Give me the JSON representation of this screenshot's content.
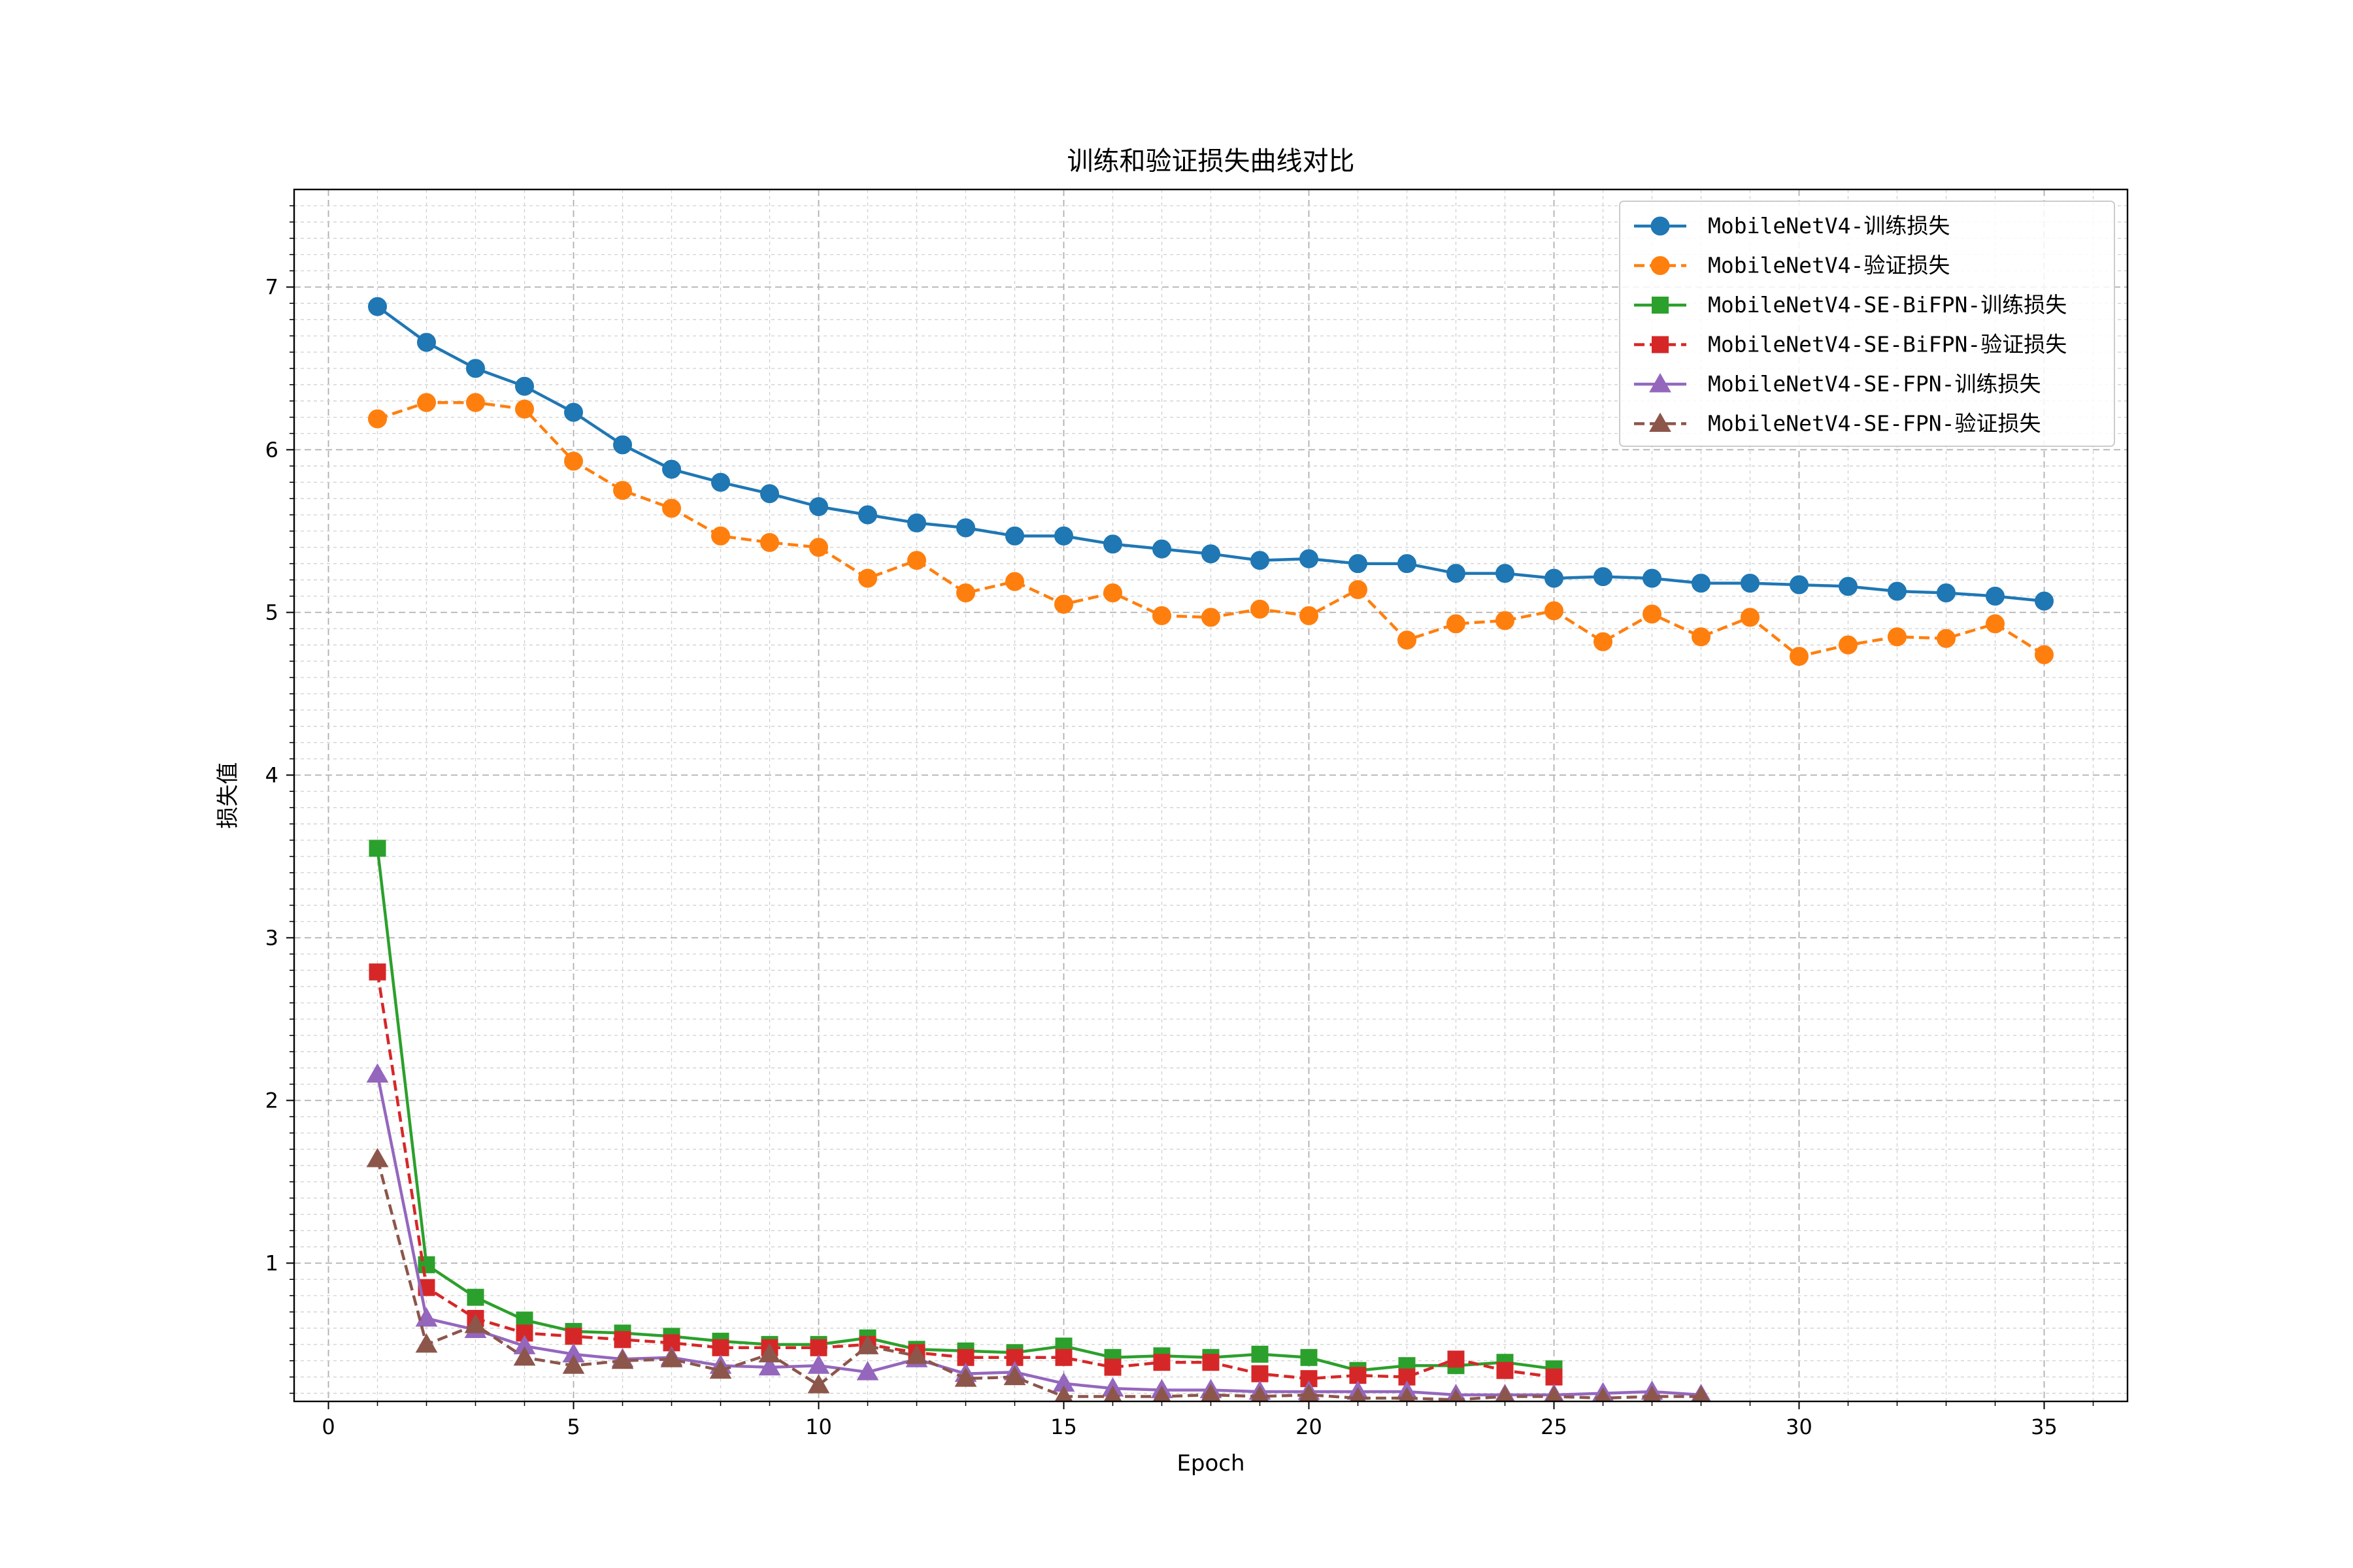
{
  "chart_data": {
    "type": "line",
    "title": "训练和验证损失曲线对比",
    "xlabel": "Epoch",
    "ylabel": "损失值",
    "xlim": [
      -0.7,
      36.7
    ],
    "ylim": [
      0.15,
      7.6
    ],
    "xticks": [
      0,
      5,
      10,
      15,
      20,
      25,
      30,
      35
    ],
    "yticks": [
      1,
      2,
      3,
      4,
      5,
      6,
      7
    ],
    "grid": true,
    "legend_position": "top-right",
    "series": [
      {
        "name": "MobileNetV4-训练损失",
        "color": "#1f77b4",
        "line_style": "solid",
        "marker": "circle",
        "x": [
          1,
          2,
          3,
          4,
          5,
          6,
          7,
          8,
          9,
          10,
          11,
          12,
          13,
          14,
          15,
          16,
          17,
          18,
          19,
          20,
          21,
          22,
          23,
          24,
          25,
          26,
          27,
          28,
          29,
          30,
          31,
          32,
          33,
          34,
          35
        ],
        "values": [
          6.88,
          6.66,
          6.5,
          6.39,
          6.23,
          6.03,
          5.88,
          5.8,
          5.73,
          5.65,
          5.6,
          5.55,
          5.52,
          5.47,
          5.47,
          5.42,
          5.39,
          5.36,
          5.32,
          5.33,
          5.3,
          5.3,
          5.24,
          5.24,
          5.21,
          5.22,
          5.21,
          5.18,
          5.18,
          5.17,
          5.16,
          5.13,
          5.12,
          5.1,
          5.07
        ]
      },
      {
        "name": "MobileNetV4-验证损失",
        "color": "#ff7f0e",
        "line_style": "dashed",
        "marker": "circle",
        "x": [
          1,
          2,
          3,
          4,
          5,
          6,
          7,
          8,
          9,
          10,
          11,
          12,
          13,
          14,
          15,
          16,
          17,
          18,
          19,
          20,
          21,
          22,
          23,
          24,
          25,
          26,
          27,
          28,
          29,
          30,
          31,
          32,
          33,
          34,
          35
        ],
        "values": [
          6.19,
          6.29,
          6.29,
          6.25,
          5.93,
          5.75,
          5.64,
          5.47,
          5.43,
          5.4,
          5.21,
          5.32,
          5.12,
          5.19,
          5.05,
          5.12,
          4.98,
          4.97,
          5.02,
          4.98,
          5.14,
          4.83,
          4.93,
          4.95,
          5.01,
          4.82,
          4.99,
          4.85,
          4.97,
          4.73,
          4.8,
          4.85,
          4.84,
          4.93,
          4.74
        ]
      },
      {
        "name": "MobileNetV4-SE-BiFPN-训练损失",
        "color": "#2ca02c",
        "line_style": "solid",
        "marker": "square",
        "x": [
          1,
          2,
          3,
          4,
          5,
          6,
          7,
          8,
          9,
          10,
          11,
          12,
          13,
          14,
          15,
          16,
          17,
          18,
          19,
          20,
          21,
          22,
          23,
          24,
          25
        ],
        "values": [
          3.55,
          0.99,
          0.79,
          0.65,
          0.58,
          0.57,
          0.55,
          0.52,
          0.5,
          0.5,
          0.54,
          0.47,
          0.46,
          0.45,
          0.49,
          0.42,
          0.43,
          0.42,
          0.44,
          0.42,
          0.34,
          0.37,
          0.37,
          0.39,
          0.35
        ]
      },
      {
        "name": "MobileNetV4-SE-BiFPN-验证损失",
        "color": "#d62728",
        "line_style": "dashed",
        "marker": "square",
        "x": [
          1,
          2,
          3,
          4,
          5,
          6,
          7,
          8,
          9,
          10,
          11,
          12,
          13,
          14,
          15,
          16,
          17,
          18,
          19,
          20,
          21,
          22,
          23,
          24,
          25
        ],
        "values": [
          2.79,
          0.85,
          0.66,
          0.57,
          0.55,
          0.53,
          0.51,
          0.48,
          0.48,
          0.48,
          0.5,
          0.45,
          0.42,
          0.42,
          0.42,
          0.36,
          0.39,
          0.39,
          0.32,
          0.29,
          0.31,
          0.3,
          0.41,
          0.34,
          0.3
        ]
      },
      {
        "name": "MobileNetV4-SE-FPN-训练损失",
        "color": "#9467bd",
        "line_style": "solid",
        "marker": "triangle",
        "x": [
          1,
          2,
          3,
          4,
          5,
          6,
          7,
          8,
          9,
          10,
          11,
          12,
          13,
          14,
          15,
          16,
          17,
          18,
          19,
          20,
          21,
          22,
          23,
          24,
          25,
          26,
          27,
          28
        ],
        "values": [
          2.16,
          0.66,
          0.59,
          0.49,
          0.44,
          0.41,
          0.42,
          0.37,
          0.36,
          0.37,
          0.33,
          0.41,
          0.32,
          0.33,
          0.26,
          0.23,
          0.22,
          0.22,
          0.21,
          0.21,
          0.21,
          0.21,
          0.19,
          0.19,
          0.19,
          0.2,
          0.21,
          0.19
        ]
      },
      {
        "name": "MobileNetV4-SE-FPN-验证损失",
        "color": "#8c564b",
        "line_style": "dashed",
        "marker": "triangle",
        "x": [
          1,
          2,
          3,
          4,
          5,
          6,
          7,
          8,
          9,
          10,
          11,
          12,
          13,
          14,
          15,
          16,
          17,
          18,
          19,
          20,
          21,
          22,
          23,
          24,
          25,
          26,
          27,
          28
        ],
        "values": [
          1.64,
          0.5,
          0.62,
          0.42,
          0.37,
          0.4,
          0.41,
          0.34,
          0.44,
          0.25,
          0.49,
          0.43,
          0.29,
          0.3,
          0.18,
          0.18,
          0.18,
          0.19,
          0.18,
          0.19,
          0.17,
          0.17,
          0.16,
          0.18,
          0.18,
          0.17,
          0.18,
          0.18
        ]
      }
    ]
  }
}
